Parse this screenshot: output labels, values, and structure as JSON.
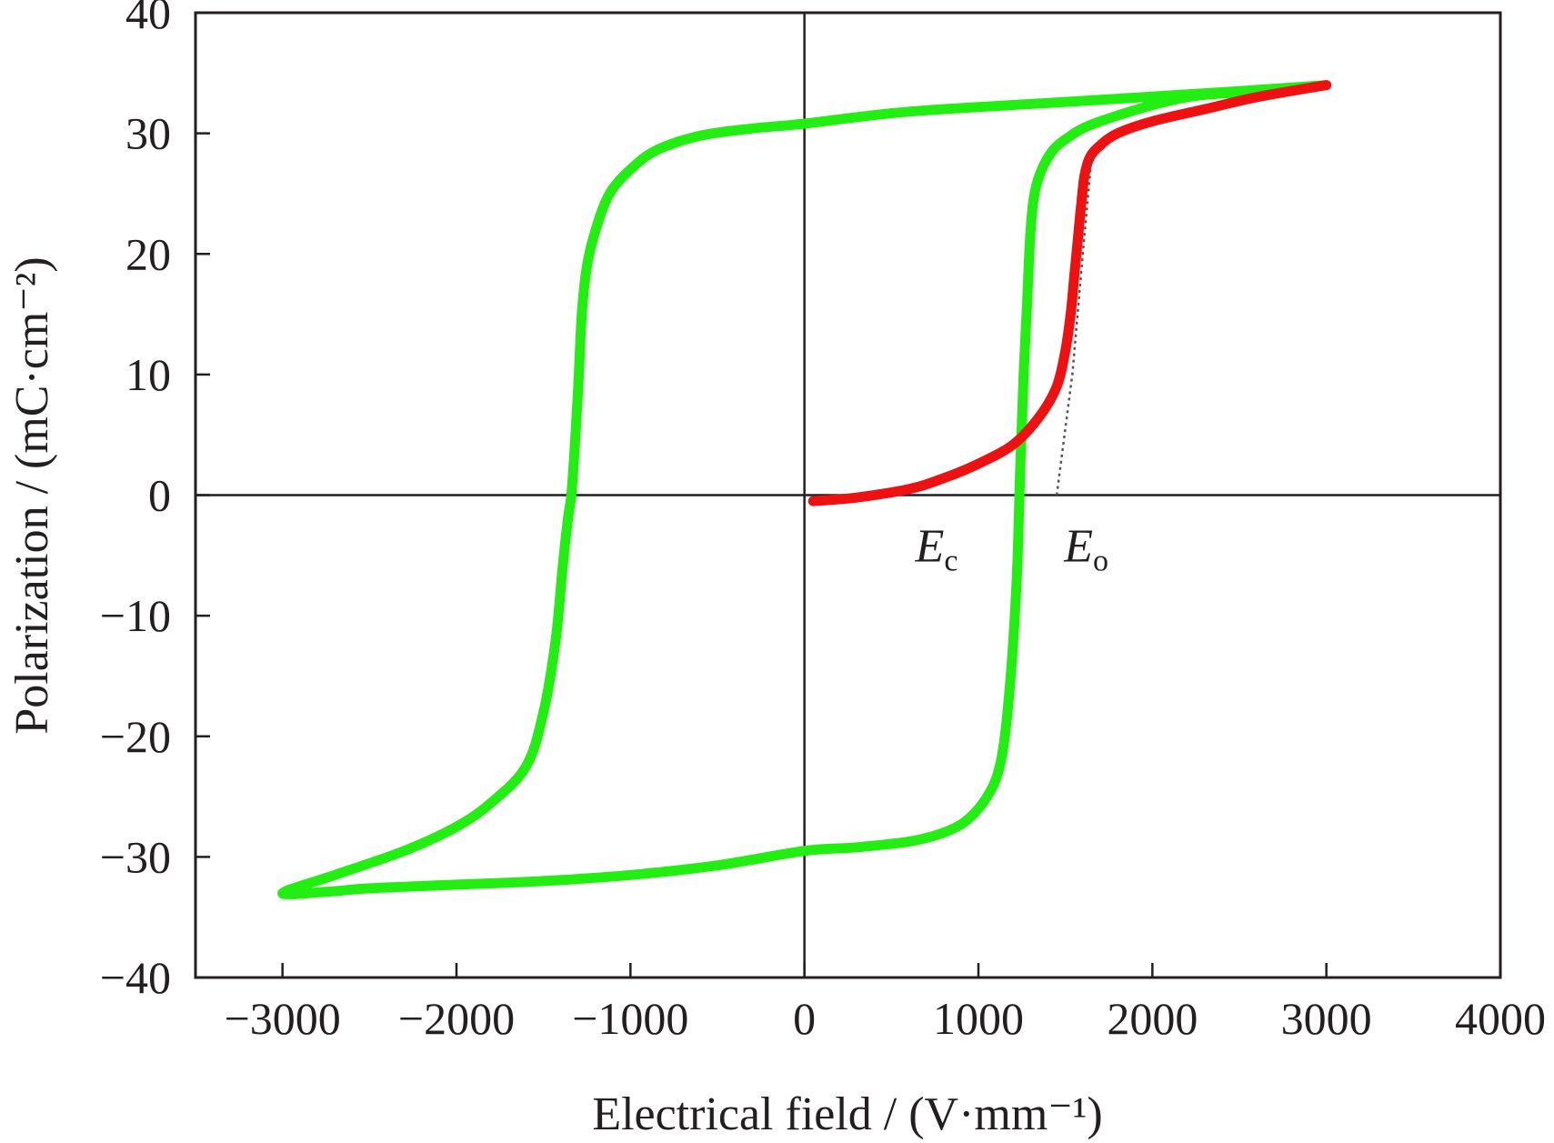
{
  "chart_data": {
    "type": "line",
    "title": "",
    "xlabel": "Electrical field / (V·mm⁻¹)",
    "ylabel": "Polarization / (mC·cm⁻²)",
    "xlim": [
      -3500,
      4000
    ],
    "ylim": [
      -40,
      40
    ],
    "x_ticks": [
      "−3000",
      "−2000",
      "−1000",
      "0",
      "1000",
      "2000",
      "3000",
      "4000"
    ],
    "x_tick_values": [
      -3000,
      -2000,
      -1000,
      0,
      1000,
      2000,
      3000,
      4000
    ],
    "y_ticks": [
      "40",
      "30",
      "20",
      "10",
      "0",
      "−10",
      "−20",
      "−30",
      "−40"
    ],
    "y_tick_values": [
      40,
      30,
      20,
      10,
      0,
      -10,
      -20,
      -30,
      -40
    ],
    "grid": false,
    "colors": {
      "loop": "#22ee11",
      "initial": "#ee1111",
      "axes": "#231f20",
      "tangent": "#555555"
    },
    "annotations": [
      {
        "main": "E",
        "sub": "c",
        "x": 760,
        "y": -5.5
      },
      {
        "main": "E",
        "sub": "o",
        "x": 1620,
        "y": -5.5
      }
    ],
    "series": [
      {
        "style": "hysteresis-loop",
        "x": [
          3000,
          2700,
          2200,
          1700,
          1500,
          1400,
          1330,
          1300,
          1280,
          1260,
          1240,
          1220,
          1180,
          1130,
          1050,
          900,
          650,
          300,
          0,
          -500,
          -1000,
          -1500,
          -2000,
          -2500,
          -2750,
          -3000,
          -2700,
          -2300,
          -2000,
          -1800,
          -1600,
          -1500,
          -1430,
          -1390,
          -1360,
          -1340,
          -1320,
          -1300,
          -1280,
          -1250,
          -1200,
          -1120,
          -1000,
          -850,
          -600,
          -300,
          0,
          600,
          1500,
          2500,
          3000
        ],
        "y": [
          34,
          33.5,
          33,
          31,
          29.5,
          28,
          25.5,
          22,
          16,
          10,
          2,
          -7,
          -16,
          -22,
          -25,
          -27.3,
          -28.6,
          -29.2,
          -29.5,
          -30.7,
          -31.5,
          -32,
          -32.3,
          -32.6,
          -32.9,
          -33,
          -31.5,
          -29.5,
          -27.5,
          -25.5,
          -22.5,
          -18,
          -12,
          -6,
          -2,
          0,
          4,
          9,
          15,
          19,
          22,
          25,
          27,
          28.6,
          29.8,
          30.4,
          30.8,
          31.8,
          32.6,
          33.5,
          34
        ]
      },
      {
        "style": "initial-curve",
        "x": [
          50,
          300,
          600,
          800,
          1000,
          1200,
          1350,
          1450,
          1500,
          1530,
          1550,
          1570,
          1590,
          1610,
          1640,
          1700,
          1800,
          2000,
          2300,
          2600,
          3000
        ],
        "y": [
          -0.5,
          -0.2,
          0.5,
          1.4,
          2.6,
          4.2,
          6.5,
          9,
          12,
          15,
          18,
          21,
          24,
          26.5,
          28,
          29,
          30,
          31,
          32,
          33,
          34
        ]
      },
      {
        "style": "tangent-line",
        "x": [
          1450,
          1540,
          1600,
          1650
        ],
        "y": [
          0,
          10,
          20,
          28
        ]
      }
    ]
  }
}
